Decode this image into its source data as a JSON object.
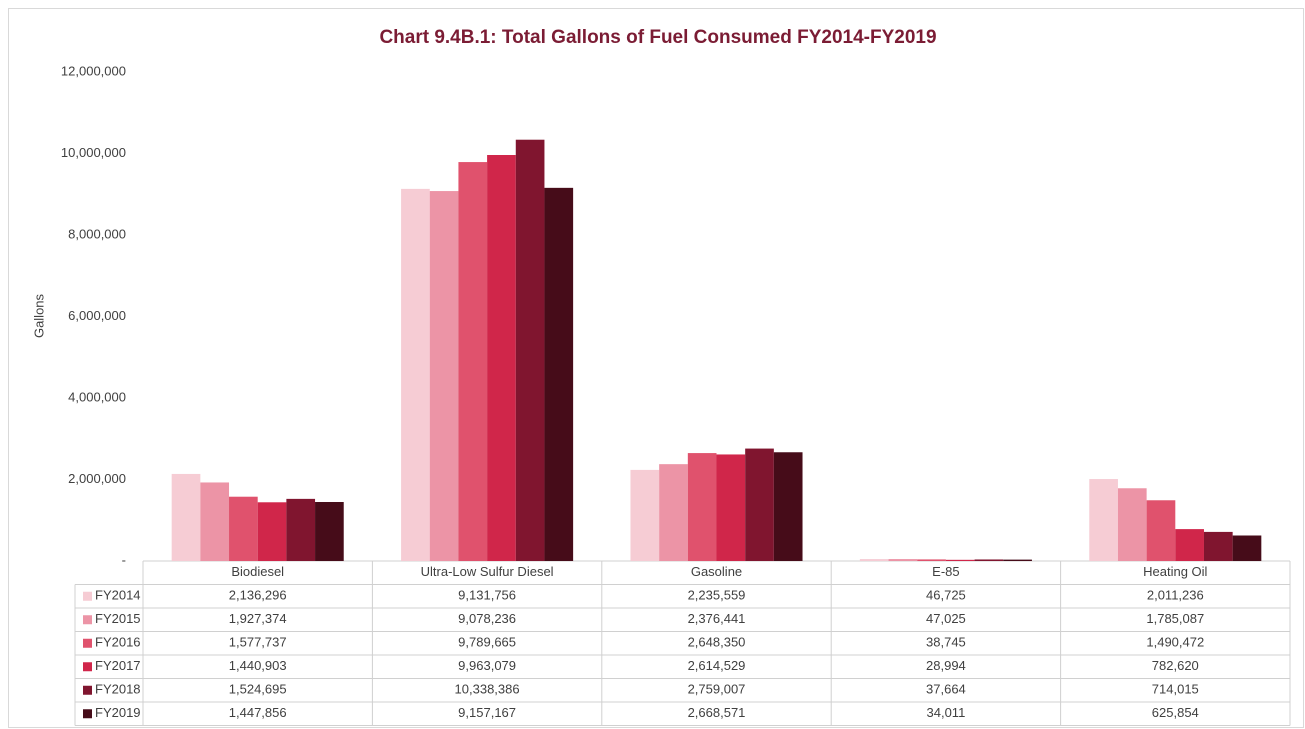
{
  "chart_data": {
    "type": "bar",
    "title": "Chart 9.4B.1: Total Gallons of Fuel Consumed FY2014-FY2019",
    "y_label": "Gallons",
    "categories": [
      "Biodiesel",
      "Ultra-Low Sulfur Diesel",
      "Gasoline",
      "E-85",
      "Heating Oil"
    ],
    "series": [
      {
        "name": "FY2014",
        "color": "#f6ccd4",
        "values": [
          2136296,
          9131756,
          2235559,
          46725,
          2011236
        ],
        "value_labels": [
          "2,136,296",
          "9,131,756",
          "2,235,559",
          "46,725",
          "2,011,236"
        ]
      },
      {
        "name": "FY2015",
        "color": "#ec94a6",
        "values": [
          1927374,
          9078236,
          2376441,
          47025,
          1785087
        ],
        "value_labels": [
          "1,927,374",
          "9,078,236",
          "2,376,441",
          "47,025",
          "1,785,087"
        ]
      },
      {
        "name": "FY2016",
        "color": "#e0526d",
        "values": [
          1577737,
          9789665,
          2648350,
          38745,
          1490472
        ],
        "value_labels": [
          "1,577,737",
          "9,789,665",
          "2,648,350",
          "38,745",
          "1,490,472"
        ]
      },
      {
        "name": "FY2017",
        "color": "#d0264a",
        "values": [
          1440903,
          9963079,
          2614529,
          28994,
          782620
        ],
        "value_labels": [
          "1,440,903",
          "9,963,079",
          "2,614,529",
          "28,994",
          "782,620"
        ]
      },
      {
        "name": "FY2018",
        "color": "#80152f",
        "values": [
          1524695,
          10338386,
          2759007,
          37664,
          714015
        ],
        "value_labels": [
          "1,524,695",
          "10,338,386",
          "2,759,007",
          "37,664",
          "714,015"
        ]
      },
      {
        "name": "FY2019",
        "color": "#460c19",
        "values": [
          1447856,
          9157167,
          2668571,
          34011,
          625854
        ],
        "value_labels": [
          "1,447,856",
          "9,157,167",
          "2,668,571",
          "34,011",
          "625,854"
        ]
      }
    ],
    "ylim": [
      0,
      12000000
    ],
    "yticks": [
      {
        "value": 0,
        "label": "-"
      },
      {
        "value": 2000000,
        "label": "2,000,000"
      },
      {
        "value": 4000000,
        "label": "4,000,000"
      },
      {
        "value": 6000000,
        "label": "6,000,000"
      },
      {
        "value": 8000000,
        "label": "8,000,000"
      },
      {
        "value": 10000000,
        "label": "10,000,000"
      },
      {
        "value": 12000000,
        "label": "12,000,000"
      }
    ],
    "grid": false
  }
}
